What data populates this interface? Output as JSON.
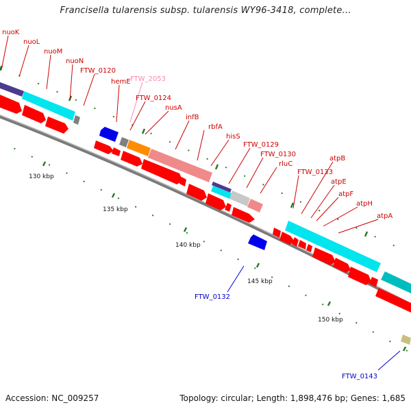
{
  "title": "Francisella tularensis subsp. tularensis WY96-3418, complete...",
  "footer": {
    "accession": "Accession: NC_009257",
    "summary": "Topology: circular; Length: 1,898,476 bp; Genes: 1,685"
  },
  "ruler_labels": [
    "130 kbp",
    "135 kbp",
    "140 kbp",
    "145 kbp",
    "150 kbp"
  ],
  "colors": {
    "gene_forward": "#ff0000",
    "gene_reverse": "#0000ee",
    "label_red": "#cc0000",
    "label_pink": "#ff88aa",
    "label_blue": "#0000cc",
    "backbone": "#7a7a7a",
    "cyan_feature": "#00e5ee",
    "pink_feature": "#f08a8a",
    "orange_feature": "#ff8c00",
    "navy_feature": "#4b3b8f",
    "tick_green": "#2a7a2a"
  },
  "gene_labels": [
    {
      "text": "nuoK",
      "style": "red"
    },
    {
      "text": "nuoL",
      "style": "red"
    },
    {
      "text": "nuoM",
      "style": "red"
    },
    {
      "text": "nuoN",
      "style": "red"
    },
    {
      "text": "FTW_0120",
      "style": "red"
    },
    {
      "text": "hemE",
      "style": "red"
    },
    {
      "text": "FTW_2053",
      "style": "pink"
    },
    {
      "text": "FTW_0124",
      "style": "red"
    },
    {
      "text": "nusA",
      "style": "red"
    },
    {
      "text": "infB",
      "style": "red"
    },
    {
      "text": "rbfA",
      "style": "red"
    },
    {
      "text": "hisS",
      "style": "red"
    },
    {
      "text": "FTW_0129",
      "style": "red"
    },
    {
      "text": "FTW_0130",
      "style": "red"
    },
    {
      "text": "rluC",
      "style": "red"
    },
    {
      "text": "FTW_0133",
      "style": "red"
    },
    {
      "text": "atpB",
      "style": "red"
    },
    {
      "text": "atpE",
      "style": "red"
    },
    {
      "text": "atpF",
      "style": "red"
    },
    {
      "text": "atpH",
      "style": "red"
    },
    {
      "text": "atpA",
      "style": "red"
    },
    {
      "text": "FTW_0132",
      "style": "blue"
    },
    {
      "text": "FTW_0143",
      "style": "blue"
    }
  ]
}
